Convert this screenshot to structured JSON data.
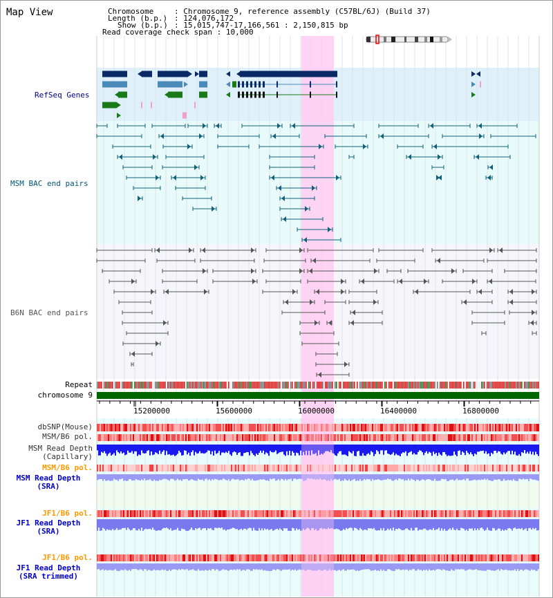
{
  "title": "Map View",
  "info": {
    "chromosome_label": "Chromosome",
    "chromosome_value": "Chromosome 9, reference assembly (C57BL/6J) (Build 37)",
    "length_label": "Length (b.p.)",
    "length_value": "124,076,172",
    "show_label": "Show (b.p.)",
    "show_value": "15,015,747-17,166,561 : 2,150,815 bp",
    "coverage_label": "Read coverage check span",
    "coverage_value": "10,000"
  },
  "tracks": {
    "refseq": "RefSeq Genes",
    "msm_bac": "MSM BAC end pairs",
    "b6n_bac": "B6N BAC end pairs",
    "repeat": "Repeat",
    "chromosome": "chromosome 9",
    "dbsnp": "dbSNP(Mouse)",
    "msm_b6_pol_1": "MSM/B6 pol.",
    "msm_depth_cap": "MSM Read Depth\n(Capillary)",
    "msm_b6_pol_2": "MSM/B6 pol.",
    "msm_depth_sra": "MSM Read Depth\n(SRA)",
    "jf1_b6_pol_1": "JF1/B6 pol.",
    "jf1_depth_sra": "JF1 Read Depth\n(SRA)",
    "jf1_b6_pol_2": "JF1/B6 pol.",
    "jf1_depth_trim": "JF1 Read Depth\n(SRA trimmed)"
  },
  "axis": {
    "ticks": [
      "15200000",
      "15600000",
      "16000000",
      "16400000",
      "16800000"
    ]
  },
  "colors": {
    "refseq_label": "#00008b",
    "msm_label": "#005577",
    "b6n_label": "#555555",
    "pol_label": "#ff9900",
    "depth_label": "#0000cc",
    "highlight": "#ffccf2",
    "chromosome": "#006600"
  }
}
